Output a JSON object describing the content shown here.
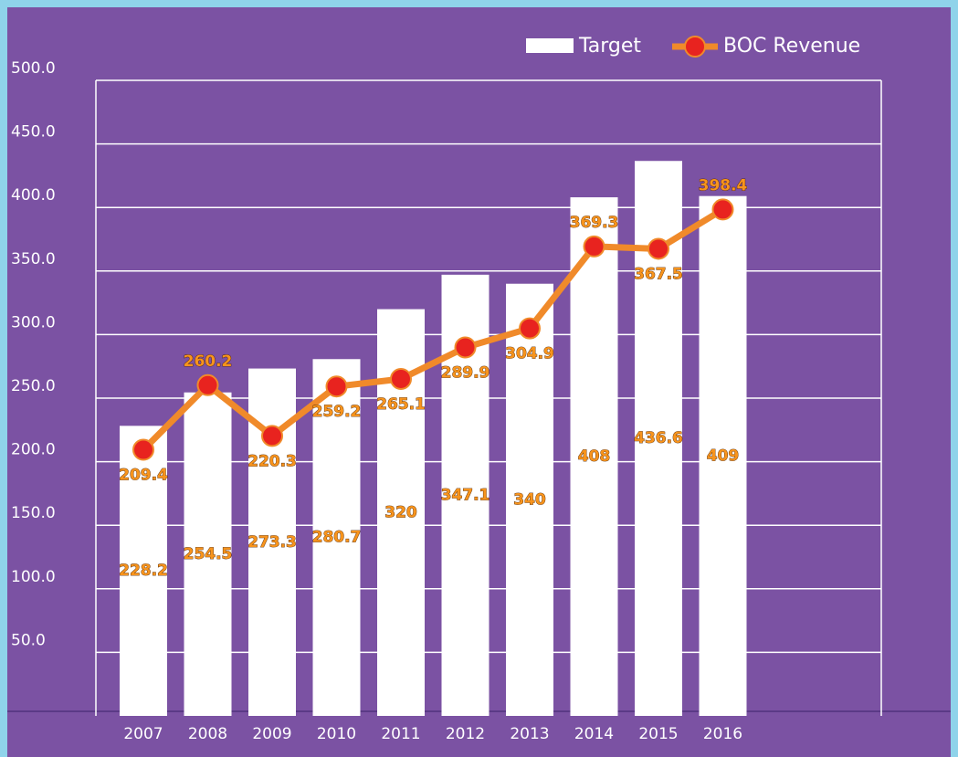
{
  "chart_data": {
    "type": "bar-line",
    "categories": [
      "2007",
      "2008",
      "2009",
      "2010",
      "2011",
      "2012",
      "2013",
      "2014",
      "2015",
      "2016"
    ],
    "series": [
      {
        "name": "Target",
        "type": "bar",
        "color": "#ffffff",
        "values": [
          228.2,
          254.5,
          273.3,
          280.7,
          320.0,
          347.1,
          340.0,
          408.0,
          436.6,
          409.0
        ]
      },
      {
        "name": "BOC Revenue",
        "type": "line",
        "color": "#f08a2a",
        "marker_color": "#e8231f",
        "values": [
          209.4,
          260.2,
          220.3,
          259.2,
          265.1,
          289.9,
          304.9,
          369.3,
          367.5,
          398.4
        ]
      }
    ],
    "ylim": [
      0,
      500
    ],
    "yticks": [
      {
        "value": 50,
        "label": "50.0"
      },
      {
        "value": 100,
        "label": "100.0"
      },
      {
        "value": 150,
        "label": "150.0"
      },
      {
        "value": 200,
        "label": "200.0"
      },
      {
        "value": 250,
        "label": "250.0"
      },
      {
        "value": 300,
        "label": "300.0"
      },
      {
        "value": 350,
        "label": "350.0"
      },
      {
        "value": 400,
        "label": "400.0"
      },
      {
        "value": 450,
        "label": "450.0"
      },
      {
        "value": 500,
        "label": "500.0"
      }
    ],
    "grid": true,
    "legend": "top-right"
  }
}
